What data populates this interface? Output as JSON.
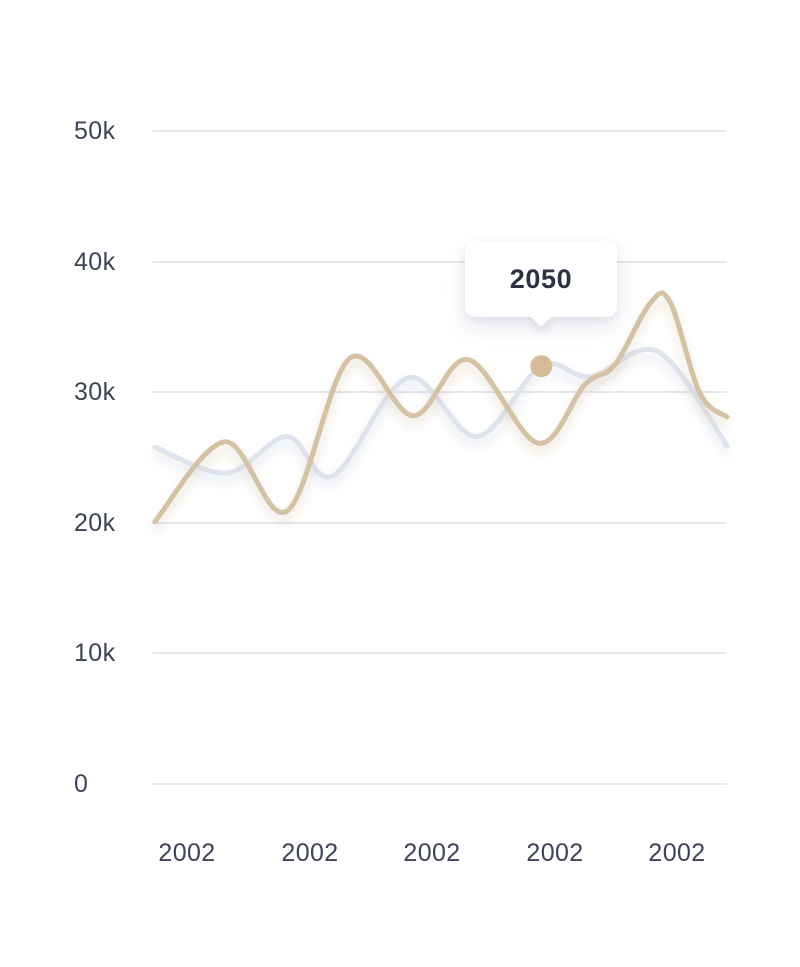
{
  "chart_data": {
    "type": "line",
    "title": "",
    "xlabel": "",
    "ylabel": "",
    "grid": true,
    "background": "#ffffff",
    "axis_label_color": "#3d4455",
    "gridline_color": "#e6e7ea",
    "y_axis": {
      "min_thousands": 0,
      "max_thousands": 50,
      "tick_step_thousands": 10
    },
    "y_tick_labels": [
      "50k",
      "40k",
      "30k",
      "20k",
      "10k",
      "0"
    ],
    "x_tick_labels": [
      "2002",
      "2002",
      "2002",
      "2002",
      "2002"
    ],
    "value_unit": "thousands",
    "series": [
      {
        "name": "secondary-line",
        "color": "#dfe3ed",
        "shadow_color": "rgba(170, 182, 205, 0.45)",
        "points": [
          {
            "x": 0.005,
            "v": 25.8
          },
          {
            "x": 0.13,
            "v": 23.8
          },
          {
            "x": 0.235,
            "v": 26.6
          },
          {
            "x": 0.315,
            "v": 23.6
          },
          {
            "x": 0.445,
            "v": 31.1
          },
          {
            "x": 0.565,
            "v": 26.6
          },
          {
            "x": 0.677,
            "v": 32.0
          },
          {
            "x": 0.762,
            "v": 31.2
          },
          {
            "x": 0.88,
            "v": 33.1
          },
          {
            "x": 1.0,
            "v": 25.9
          }
        ]
      },
      {
        "name": "primary-line",
        "color": "#d5c2a5",
        "shadow_color": "rgba(193, 168, 133, 0.40)",
        "points": [
          {
            "x": 0.005,
            "v": 20.1
          },
          {
            "x": 0.127,
            "v": 26.2
          },
          {
            "x": 0.235,
            "v": 20.9
          },
          {
            "x": 0.344,
            "v": 32.6
          },
          {
            "x": 0.454,
            "v": 28.2
          },
          {
            "x": 0.55,
            "v": 32.5
          },
          {
            "x": 0.671,
            "v": 26.1
          },
          {
            "x": 0.753,
            "v": 30.6
          },
          {
            "x": 0.805,
            "v": 32.1
          },
          {
            "x": 0.866,
            "v": 36.8
          },
          {
            "x": 0.901,
            "v": 36.9
          },
          {
            "x": 0.953,
            "v": 29.9
          },
          {
            "x": 1.0,
            "v": 28.1
          }
        ]
      }
    ],
    "marker": {
      "x": 0.677,
      "v": 32.0,
      "radius": 11,
      "color": "#d5bb95",
      "label": "2050"
    },
    "tooltip": {
      "label": "2050",
      "text_color": "#2b3342",
      "background": "#ffffff"
    }
  }
}
